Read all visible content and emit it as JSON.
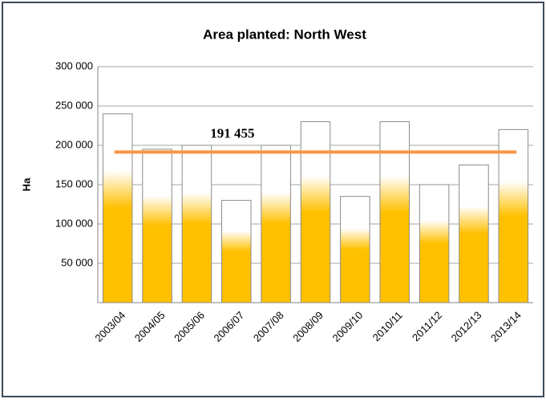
{
  "chart_data": {
    "type": "bar",
    "title": "Area planted: North West",
    "y_label": "Ha",
    "categories": [
      "2003/04",
      "2004/05",
      "2005/06",
      "2006/07",
      "2007/08",
      "2008/09",
      "2009/10",
      "2010/11",
      "2011/12",
      "2012/13",
      "2013/14"
    ],
    "values": [
      240000,
      195000,
      200000,
      130000,
      200000,
      230000,
      135000,
      230000,
      150000,
      175000,
      220000
    ],
    "color": "#ffc000",
    "ylim": [
      0,
      300000
    ],
    "yticks": [
      {
        "value": 50000,
        "label": "50 000"
      },
      {
        "value": 100000,
        "label": "100 000"
      },
      {
        "value": 150000,
        "label": "150 000"
      },
      {
        "value": 200000,
        "label": "200 000"
      },
      {
        "value": 250000,
        "label": "250 000"
      },
      {
        "value": 300000,
        "label": "300 000"
      }
    ],
    "grid": true,
    "average": {
      "value": 191455,
      "label": "191 455",
      "color": "#f79646"
    }
  }
}
